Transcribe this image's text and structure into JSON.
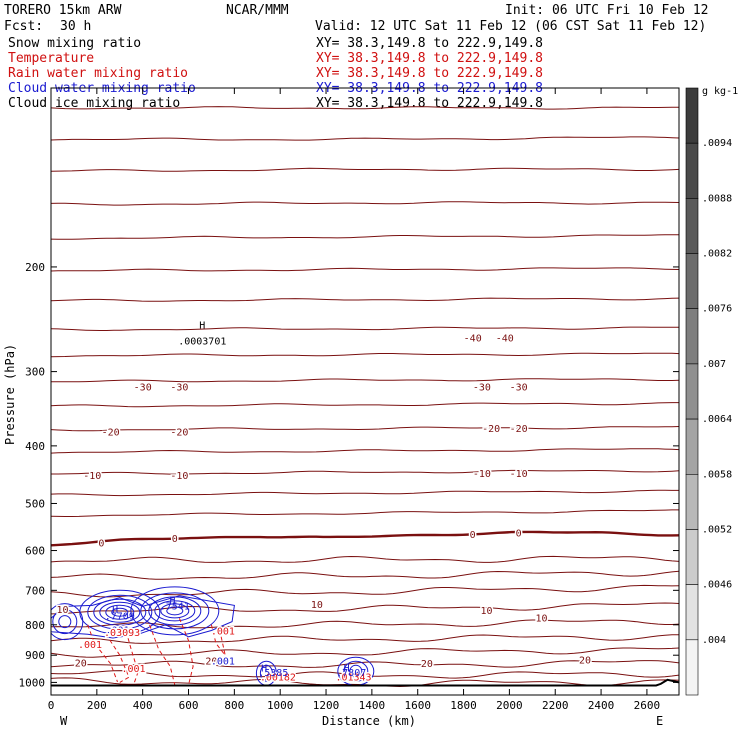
{
  "header": {
    "model": "TORERO  15km ARW",
    "org": "NCAR/MMM",
    "init": "Init: 06 UTC Fri 10 Feb 12",
    "fcst_label": "Fcst:",
    "fcst_value": "30 h",
    "valid": "Valid: 12 UTC Sat 11 Feb 12 (06 CST Sat 11 Feb 12)"
  },
  "legend": [
    {
      "name": "Snow mixing ratio",
      "xy": "XY=  38.3,149.8 to 222.9,149.8",
      "color": "#000000"
    },
    {
      "name": "Temperature",
      "xy": "XY=  38.3,149.8 to 222.9,149.8",
      "color": "#d01010"
    },
    {
      "name": "Rain water mixing ratio",
      "xy": "XY=  38.3,149.8 to 222.9,149.8",
      "color": "#d01010"
    },
    {
      "name": "Cloud water mixing ratio",
      "xy": "XY=  38.3,149.8 to 222.9,149.8",
      "color": "#1a1ad0"
    },
    {
      "name": "Cloud ice mixing ratio",
      "xy": "XY=  38.3,149.8 to 222.9,149.8",
      "color": "#000000"
    }
  ],
  "chart_data": {
    "type": "line",
    "ylabel": "Pressure (hPa)",
    "xlabel": "Distance (km)",
    "x_ticks": [
      0,
      200,
      400,
      600,
      800,
      1000,
      1200,
      1400,
      1600,
      1800,
      2000,
      2200,
      2400,
      2600
    ],
    "y_ticks": [
      200,
      300,
      400,
      500,
      600,
      700,
      800,
      900,
      1000
    ],
    "xlim": [
      0,
      2740
    ],
    "ylim": [
      1050,
      100
    ],
    "west_label": "W",
    "east_label": "E",
    "colorbar": {
      "unit": "g kg-1",
      "labels": [
        ".0094",
        ".0088",
        ".0082",
        ".0076",
        ".007",
        ".0064",
        ".0058",
        ".0052",
        ".0046",
        ".004"
      ],
      "colors": [
        "#3c3c3c",
        "#4a4a4a",
        "#5a5a5a",
        "#6c6c6c",
        "#7e7e7e",
        "#909090",
        "#a4a4a4",
        "#b8b8b8",
        "#cccccc",
        "#e2e2e2",
        "#f4f4f4"
      ]
    },
    "colors": {
      "temperature": "#7a1010",
      "freezing": "#7a1010",
      "rain": "#e01818",
      "cloud_water": "#1a1ad0",
      "terrain": "#000000"
    },
    "isotherms": [
      {
        "temp": -50,
        "p": [
          108,
          108,
          108
        ]
      },
      {
        "temp": -50,
        "p": [
          122,
          122,
          121
        ]
      },
      {
        "temp": -45,
        "p": [
          138,
          137,
          137
        ]
      },
      {
        "temp": -45,
        "p": [
          157,
          156,
          156
        ]
      },
      {
        "temp": -40,
        "p": [
          179,
          178,
          177
        ]
      },
      {
        "temp": -40,
        "p": [
          203,
          202,
          201
        ]
      },
      {
        "temp": -40,
        "p": [
          228,
          227,
          226
        ]
      },
      {
        "temp": -40,
        "p": [
          255,
          254,
          253
        ]
      },
      {
        "temp": -35,
        "p": [
          282,
          281,
          280
        ]
      },
      {
        "temp": -30,
        "p": [
          312,
          310,
          309
        ]
      },
      {
        "temp": -25,
        "p": [
          343,
          341,
          339
        ]
      },
      {
        "temp": -20,
        "p": [
          376,
          374,
          372
        ]
      },
      {
        "temp": -15,
        "p": [
          410,
          408,
          405
        ]
      },
      {
        "temp": -10,
        "p": [
          446,
          443,
          440
        ]
      },
      {
        "temp": -5,
        "p": [
          484,
          480,
          476
        ]
      },
      {
        "temp": -2,
        "p": [
          524,
          519,
          514
        ]
      },
      {
        "temp": 2,
        "p": [
          625,
          622,
          618
        ]
      },
      {
        "temp": 5,
        "p": [
          666,
          662,
          652
        ]
      },
      {
        "temp": 8,
        "p": [
          712,
          704,
          690
        ]
      },
      {
        "temp": 10,
        "p": [
          758,
          752,
          740
        ]
      },
      {
        "temp": 12,
        "p": [
          806,
          799,
          788
        ]
      },
      {
        "temp": 15,
        "p": [
          854,
          845,
          836
        ]
      },
      {
        "temp": 18,
        "p": [
          898,
          890,
          880
        ]
      },
      {
        "temp": 20,
        "p": [
          932,
          936,
          924
        ]
      },
      {
        "temp": 22,
        "p": [
          966,
          974,
          966
        ]
      },
      {
        "temp": 25,
        "p": [
          994,
          1006,
          996
        ]
      }
    ],
    "freezing_level": {
      "x": [
        0,
        300,
        600,
        900,
        1200,
        1500,
        1800,
        2100,
        2400,
        2740
      ],
      "p": [
        588,
        578,
        570,
        568,
        572,
        566,
        562,
        560,
        560,
        564
      ]
    },
    "terrain": {
      "x": [
        0,
        2500,
        2640,
        2660,
        2690,
        2740
      ],
      "p": [
        1012,
        1012,
        1012,
        1006,
        990,
        1000
      ]
    },
    "contour_labels": [
      {
        "text": "-40",
        "x": 1840,
        "p": 263,
        "color": "#7a1010"
      },
      {
        "text": "-40",
        "x": 1980,
        "p": 263,
        "color": "#7a1010"
      },
      {
        "text": "-30",
        "x": 400,
        "p": 318,
        "color": "#7a1010"
      },
      {
        "text": "-30",
        "x": 560,
        "p": 318,
        "color": "#7a1010"
      },
      {
        "text": "-30",
        "x": 1880,
        "p": 318,
        "color": "#7a1010"
      },
      {
        "text": "-30",
        "x": 2040,
        "p": 318,
        "color": "#7a1010"
      },
      {
        "text": "-20",
        "x": 260,
        "p": 378,
        "color": "#7a1010"
      },
      {
        "text": "-20",
        "x": 560,
        "p": 378,
        "color": "#7a1010"
      },
      {
        "text": "-20",
        "x": 1920,
        "p": 373,
        "color": "#7a1010"
      },
      {
        "text": "-20",
        "x": 2040,
        "p": 373,
        "color": "#7a1010"
      },
      {
        "text": "-10",
        "x": 180,
        "p": 448,
        "color": "#7a1010"
      },
      {
        "text": "-10",
        "x": 560,
        "p": 448,
        "color": "#7a1010"
      },
      {
        "text": "-10",
        "x": 1880,
        "p": 444,
        "color": "#7a1010"
      },
      {
        "text": "-10",
        "x": 2040,
        "p": 444,
        "color": "#7a1010"
      },
      {
        "text": "0",
        "x": 220,
        "p": 582,
        "color": "#7a1010"
      },
      {
        "text": "0",
        "x": 540,
        "p": 572,
        "color": "#7a1010"
      },
      {
        "text": "0",
        "x": 1840,
        "p": 563,
        "color": "#7a1010"
      },
      {
        "text": "0",
        "x": 2040,
        "p": 560,
        "color": "#7a1010"
      },
      {
        "text": "10",
        "x": 50,
        "p": 752,
        "color": "#7a1010"
      },
      {
        "text": "10",
        "x": 1160,
        "p": 738,
        "color": "#7a1010"
      },
      {
        "text": "10",
        "x": 1900,
        "p": 755,
        "color": "#7a1010"
      },
      {
        "text": "10",
        "x": 2140,
        "p": 778,
        "color": "#7a1010"
      },
      {
        "text": "20",
        "x": 130,
        "p": 925,
        "color": "#7a1010"
      },
      {
        "text": "20",
        "x": 700,
        "p": 918,
        "color": "#7a1010"
      },
      {
        "text": "20",
        "x": 1640,
        "p": 928,
        "color": "#7a1010"
      },
      {
        "text": "20",
        "x": 2330,
        "p": 915,
        "color": "#7a1010"
      },
      {
        "text": ".001",
        "x": 170,
        "p": 862,
        "color": "#e01818"
      },
      {
        "text": ".001",
        "x": 360,
        "p": 945,
        "color": "#e01818"
      },
      {
        "text": ".001",
        "x": 750,
        "p": 818,
        "color": "#e01818"
      },
      {
        "text": ".001",
        "x": 750,
        "p": 918,
        "color": "#1a1ad0"
      },
      {
        "text": ".001",
        "x": 290,
        "p": 815,
        "color": "#1a1ad0"
      },
      {
        "text": ".03093",
        "x": 310,
        "p": 822,
        "color": "#e01818"
      },
      {
        "text": ".00182",
        "x": 990,
        "p": 978,
        "color": "#e01818"
      },
      {
        "text": ".01343",
        "x": 1320,
        "p": 978,
        "color": "#e01818"
      }
    ],
    "extrema": [
      {
        "text": "H",
        "x": 660,
        "p": 250,
        "color": "#000000"
      },
      {
        "text": ".0003701",
        "x": 660,
        "p": 266,
        "color": "#000000"
      },
      {
        "text": "H",
        "x": 280,
        "p": 752,
        "color": "#1a1ad0"
      },
      {
        "text": ".7709",
        "x": 300,
        "p": 771,
        "color": "#1a1ad0"
      },
      {
        "text": "H",
        "x": 530,
        "p": 726,
        "color": "#1a1ad0"
      },
      {
        "text": ".7541",
        "x": 540,
        "p": 742,
        "color": "#1a1ad0"
      },
      {
        "text": "H",
        "x": 930,
        "p": 943,
        "color": "#1a1ad0"
      },
      {
        "text": ".5385",
        "x": 970,
        "p": 960,
        "color": "#1a1ad0"
      },
      {
        "text": "H",
        "x": 1290,
        "p": 943,
        "color": "#1a1ad0"
      },
      {
        "text": ".7807",
        "x": 1310,
        "p": 960,
        "color": "#1a1ad0"
      }
    ]
  }
}
